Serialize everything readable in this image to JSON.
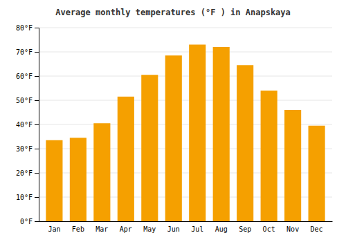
{
  "chart_data": {
    "type": "bar",
    "title": "Average monthly temperatures (°F ) in Anapskaya",
    "categories": [
      "Jan",
      "Feb",
      "Mar",
      "Apr",
      "May",
      "Jun",
      "Jul",
      "Aug",
      "Sep",
      "Oct",
      "Nov",
      "Dec"
    ],
    "values": [
      33.5,
      34.5,
      40.5,
      51.5,
      60.5,
      68.5,
      73.0,
      72.0,
      64.5,
      54.0,
      46.0,
      39.5
    ],
    "color": "#F5A000",
    "ylim": [
      0,
      80
    ],
    "yticks": [
      {
        "value": 0,
        "label": "0°F"
      },
      {
        "value": 10,
        "label": "10°F"
      },
      {
        "value": 20,
        "label": "20°F"
      },
      {
        "value": 30,
        "label": "30°F"
      },
      {
        "value": 40,
        "label": "40°F"
      },
      {
        "value": 50,
        "label": "50°F"
      },
      {
        "value": 60,
        "label": "60°F"
      },
      {
        "value": 70,
        "label": "70°F"
      },
      {
        "value": 80,
        "label": "80°F"
      }
    ],
    "grid": true
  }
}
